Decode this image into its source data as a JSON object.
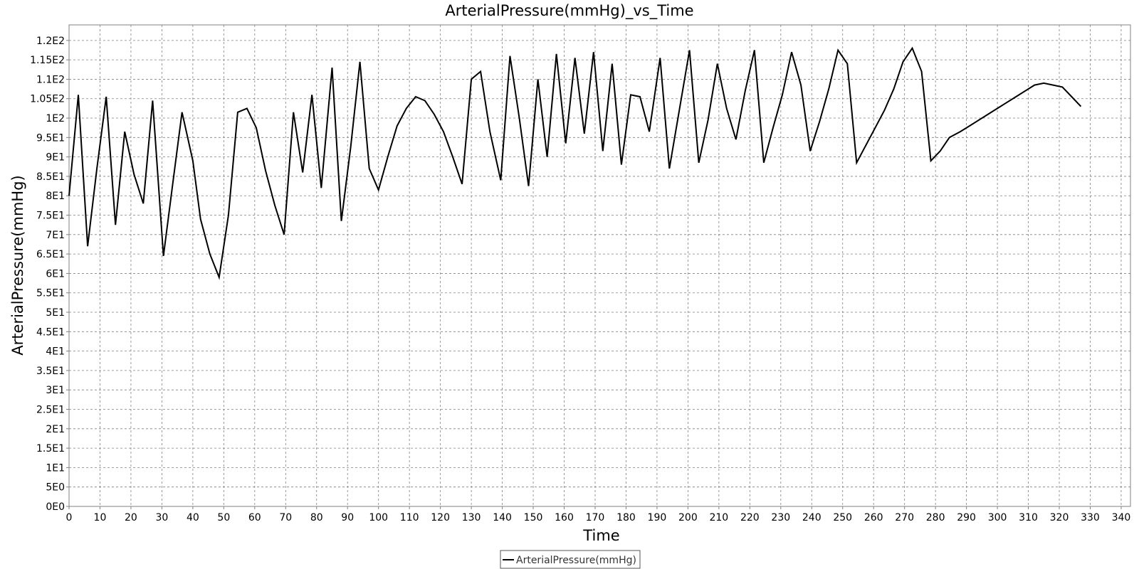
{
  "chart_data": {
    "type": "line",
    "title": "ArterialPressure(mmHg)_vs_Time",
    "xlabel": "Time",
    "ylabel": "ArterialPressure(mmHg)",
    "xlim": [
      0,
      343
    ],
    "ylim": [
      0,
      124
    ],
    "x_ticks": [
      0,
      10,
      20,
      30,
      40,
      50,
      60,
      70,
      80,
      90,
      100,
      110,
      120,
      130,
      140,
      150,
      160,
      170,
      180,
      190,
      200,
      210,
      220,
      230,
      240,
      250,
      260,
      270,
      280,
      290,
      300,
      310,
      320,
      330,
      340
    ],
    "y_ticks": [
      {
        "value": 0,
        "label": "0E0"
      },
      {
        "value": 5,
        "label": "5E0"
      },
      {
        "value": 10,
        "label": "1E1"
      },
      {
        "value": 15,
        "label": "1.5E1"
      },
      {
        "value": 20,
        "label": "2E1"
      },
      {
        "value": 25,
        "label": "2.5E1"
      },
      {
        "value": 30,
        "label": "3E1"
      },
      {
        "value": 35,
        "label": "3.5E1"
      },
      {
        "value": 40,
        "label": "4E1"
      },
      {
        "value": 45,
        "label": "4.5E1"
      },
      {
        "value": 50,
        "label": "5E1"
      },
      {
        "value": 55,
        "label": "5.5E1"
      },
      {
        "value": 60,
        "label": "6E1"
      },
      {
        "value": 65,
        "label": "6.5E1"
      },
      {
        "value": 70,
        "label": "7E1"
      },
      {
        "value": 75,
        "label": "7.5E1"
      },
      {
        "value": 80,
        "label": "8E1"
      },
      {
        "value": 85,
        "label": "8.5E1"
      },
      {
        "value": 90,
        "label": "9E1"
      },
      {
        "value": 95,
        "label": "9.5E1"
      },
      {
        "value": 100,
        "label": "1E2"
      },
      {
        "value": 105,
        "label": "1.05E2"
      },
      {
        "value": 110,
        "label": "1.1E2"
      },
      {
        "value": 115,
        "label": "1.15E2"
      },
      {
        "value": 120,
        "label": "1.2E2"
      }
    ],
    "grid": true,
    "legend_position": "bottom-center",
    "series": [
      {
        "name": "ArterialPressure(mmHg)",
        "color": "#000000",
        "x": [
          0,
          3,
          6,
          9,
          12,
          15,
          18,
          21,
          24,
          27,
          30.5,
          33.5,
          36.5,
          40,
          42.5,
          45.5,
          48.5,
          51.5,
          54.5,
          57.5,
          60.5,
          63.5,
          66.5,
          69.5,
          72.5,
          75.5,
          78.5,
          81.5,
          85,
          88,
          91,
          94,
          97,
          100,
          103,
          106,
          109,
          112,
          115,
          118,
          121,
          124,
          127,
          130,
          133,
          136,
          139.5,
          142.5,
          145.5,
          148.5,
          151.5,
          154.5,
          157.5,
          160.5,
          163.5,
          166.5,
          169.5,
          172.5,
          175.5,
          178.5,
          181.5,
          184.5,
          187.5,
          191,
          194,
          197,
          200.5,
          203.5,
          206.5,
          209.5,
          212.5,
          215.5,
          218.5,
          221.5,
          224.5,
          227.5,
          230.5,
          233.5,
          236.5,
          239.5,
          242.5,
          245.5,
          248.5,
          251.5,
          254.5,
          257.5,
          260.5,
          263.5,
          266.5,
          269.5,
          272.5,
          275.5,
          278.5,
          281.5,
          284.5,
          288,
          291,
          294,
          297,
          300,
          303,
          306,
          309,
          312,
          315,
          318,
          321,
          324,
          327
        ],
        "y": [
          80,
          106,
          67,
          87,
          105.5,
          72.5,
          96.5,
          85.5,
          78,
          104.5,
          64.5,
          83,
          101.5,
          89,
          74,
          65,
          59,
          75,
          101.5,
          102.5,
          97.5,
          86.5,
          77.5,
          70,
          101.5,
          86,
          106,
          82,
          113,
          73.5,
          92.5,
          114.5,
          87,
          81.5,
          90,
          98,
          102.5,
          105.5,
          104.5,
          101,
          96.5,
          90,
          83,
          110,
          112,
          96.5,
          84,
          116,
          100,
          82.5,
          110,
          90,
          116.5,
          93.5,
          115.5,
          96,
          117,
          91.5,
          114,
          88,
          106,
          105.5,
          96.5,
          115.5,
          87,
          101,
          117.5,
          88.5,
          99.5,
          114,
          102.5,
          94.5,
          107,
          117.5,
          88.5,
          97.5,
          106,
          117,
          108.5,
          91.5,
          99,
          107.5,
          117.5,
          114,
          88.5,
          93,
          97.5,
          102,
          107.5,
          114.5,
          118,
          112,
          89,
          91.5,
          95,
          96.5,
          98,
          99.5,
          101,
          102.5,
          104,
          105.5,
          107,
          108.5,
          109,
          108.5,
          108,
          105.5,
          103
        ]
      }
    ]
  }
}
